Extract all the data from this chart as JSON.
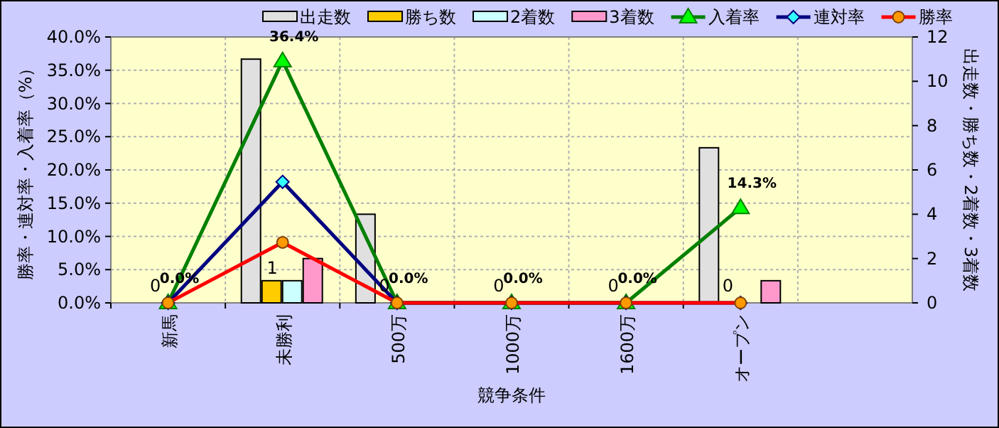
{
  "chart_data": {
    "type": "bar",
    "xlabel": "競争条件",
    "ylabel": "勝率・連対率・入着率（%）",
    "y2label": "出走数・勝ち数・2着数・3着数",
    "categories": [
      "新馬",
      "未勝利",
      "500万",
      "1000万",
      "1600万",
      "オープン",
      null
    ],
    "series": [
      {
        "name": "出走数",
        "axis": "y2",
        "color": "#e0e0e0",
        "values": [
          0,
          11,
          4,
          0,
          0,
          7,
          null
        ]
      },
      {
        "name": "勝ち数",
        "axis": "y2",
        "color": "#ffcc00",
        "values": [
          0,
          1,
          0,
          0,
          0,
          0,
          null
        ],
        "value_labels": [
          "0",
          "1",
          "0",
          "0",
          "0",
          "0",
          null
        ]
      },
      {
        "name": "2着数",
        "axis": "y2",
        "color": "#ccffff",
        "values": [
          0,
          1,
          0,
          0,
          0,
          0,
          null
        ]
      },
      {
        "name": "3着数",
        "axis": "y2",
        "color": "#ff99cc",
        "values": [
          0,
          2,
          0,
          0,
          0,
          1,
          null
        ]
      },
      {
        "name": "入着率",
        "type": "line",
        "color": "#008000",
        "marker": "triangle",
        "values": [
          0,
          36.4,
          0,
          0,
          0,
          14.3,
          null
        ],
        "value_labels": [
          "0.0%",
          "36.4%",
          "0.0%",
          "0.0%",
          "0.0%",
          "14.3%",
          null
        ]
      },
      {
        "name": "連対率",
        "type": "line",
        "color": "#000080",
        "marker": "diamond",
        "values": [
          0,
          18.2,
          0,
          0,
          0,
          0,
          null
        ]
      },
      {
        "name": "勝率",
        "type": "line",
        "color": "#ff0000",
        "marker": "circle",
        "values": [
          0,
          9.1,
          0,
          0,
          0,
          0,
          null
        ]
      }
    ],
    "ylim": [
      0,
      40
    ],
    "yticks": [
      {
        "value": 0,
        "label": "0.0%"
      },
      {
        "value": 5,
        "label": "5.0%"
      },
      {
        "value": 10,
        "label": "10.0%"
      },
      {
        "value": 15,
        "label": "15.0%"
      },
      {
        "value": 20,
        "label": "20.0%"
      },
      {
        "value": 25,
        "label": "25.0%"
      },
      {
        "value": 30,
        "label": "30.0%"
      },
      {
        "value": 35,
        "label": "35.0%"
      },
      {
        "value": 40,
        "label": "40.0%"
      }
    ],
    "y2lim": [
      0,
      12
    ],
    "y2ticks": [
      0,
      2,
      4,
      6,
      8,
      10,
      12
    ],
    "grid": true,
    "legend": "top"
  }
}
